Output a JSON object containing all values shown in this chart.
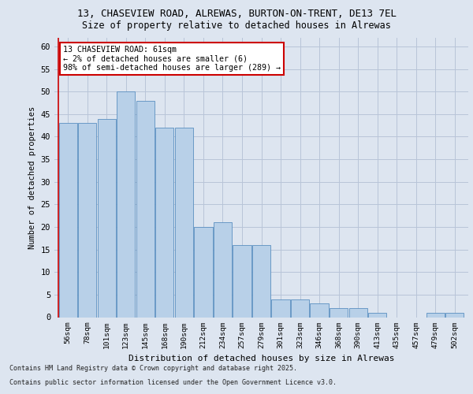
{
  "title_line1": "13, CHASEVIEW ROAD, ALREWAS, BURTON-ON-TRENT, DE13 7EL",
  "title_line2": "Size of property relative to detached houses in Alrewas",
  "xlabel": "Distribution of detached houses by size in Alrewas",
  "ylabel": "Number of detached properties",
  "categories": [
    "56sqm",
    "78sqm",
    "101sqm",
    "123sqm",
    "145sqm",
    "168sqm",
    "190sqm",
    "212sqm",
    "234sqm",
    "257sqm",
    "279sqm",
    "301sqm",
    "323sqm",
    "346sqm",
    "368sqm",
    "390sqm",
    "413sqm",
    "435sqm",
    "457sqm",
    "479sqm",
    "502sqm"
  ],
  "values": [
    43,
    43,
    44,
    50,
    48,
    42,
    42,
    20,
    21,
    16,
    16,
    4,
    4,
    3,
    2,
    2,
    1,
    0,
    0,
    1,
    1
  ],
  "bar_color": "#b8d0e8",
  "bar_edge_color": "#5a8fc0",
  "highlight_color": "#cc0000",
  "annotation_text": "13 CHASEVIEW ROAD: 61sqm\n← 2% of detached houses are smaller (6)\n98% of semi-detached houses are larger (289) →",
  "annotation_box_color": "#ffffff",
  "annotation_box_edge_color": "#cc0000",
  "ylim": [
    0,
    62
  ],
  "yticks": [
    0,
    5,
    10,
    15,
    20,
    25,
    30,
    35,
    40,
    45,
    50,
    55,
    60
  ],
  "footer_line1": "Contains HM Land Registry data © Crown copyright and database right 2025.",
  "footer_line2": "Contains public sector information licensed under the Open Government Licence v3.0.",
  "bg_color": "#dde5f0",
  "grid_color": "#b8c4d8"
}
